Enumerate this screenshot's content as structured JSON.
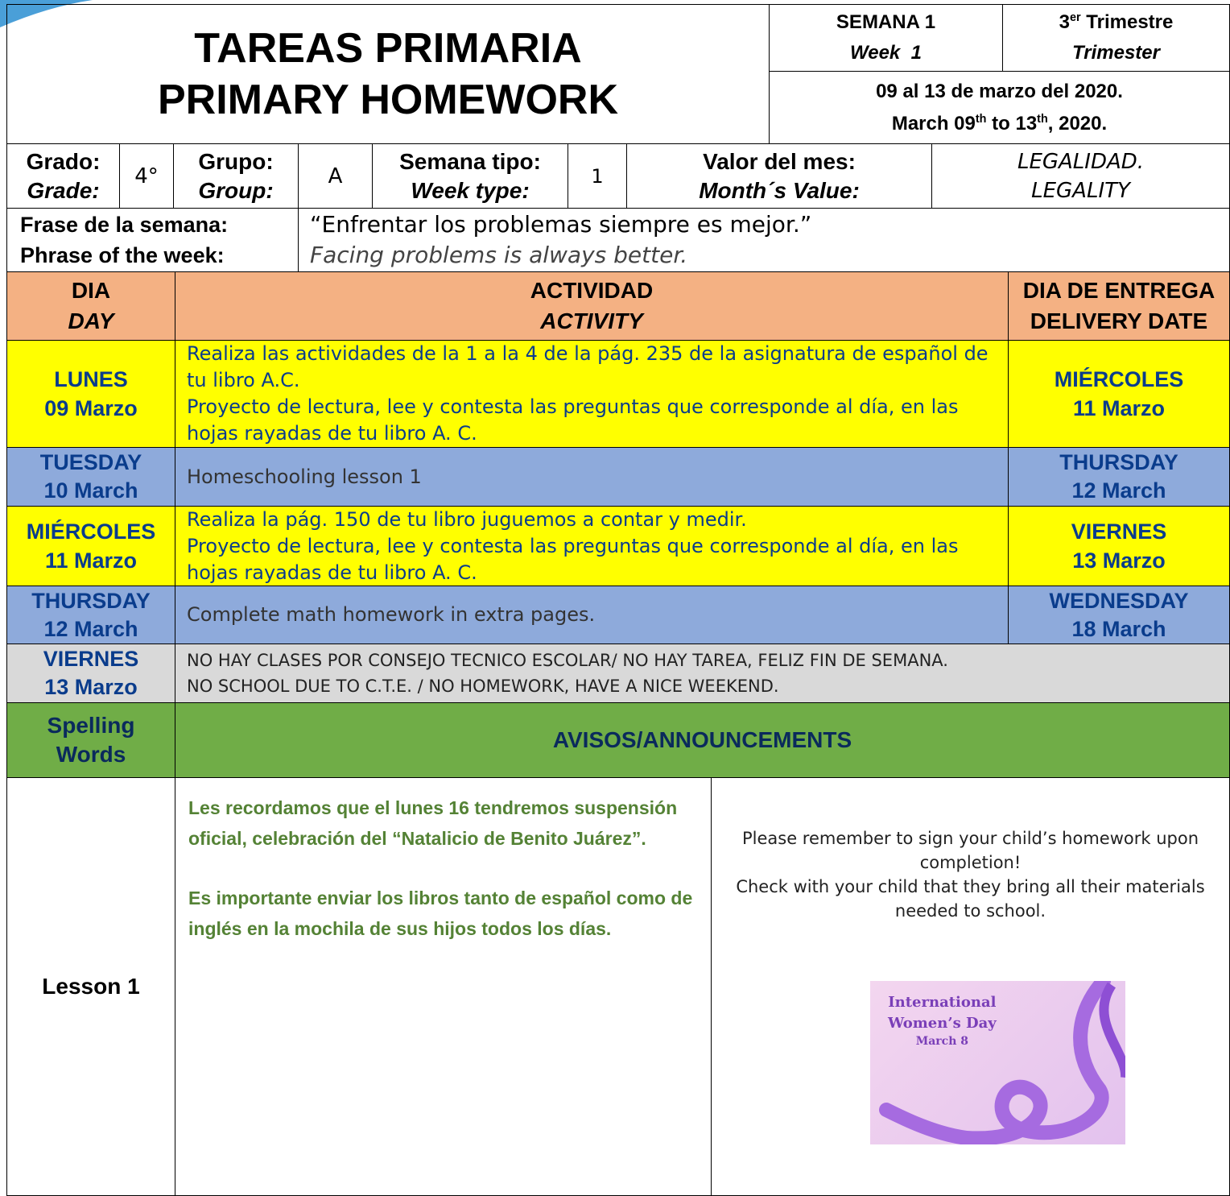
{
  "header": {
    "title_es": "TAREAS PRIMARIA",
    "title_en": "PRIMARY HOMEWORK",
    "week_es": "SEMANA 1",
    "week_en": "Week  1",
    "trimester_num": "3",
    "trimester_sup": "er",
    "trimester_es": "Trimestre",
    "trimester_en": "Trimester",
    "dates_es": "09 al 13 de marzo del 2020.",
    "dates_en": [
      "March 09",
      "th",
      " to 13",
      "th",
      ", 2020."
    ]
  },
  "info": {
    "grade_label_es": "Grado:",
    "grade_label_en": "Grade:",
    "grade": "4°",
    "group_label_es": "Grupo:",
    "group_label_en": "Group:",
    "group": "A",
    "week_type_label_es": "Semana tipo:",
    "week_type_label_en": "Week type:",
    "week_type": "1",
    "value_label_es": "Valor del mes:",
    "value_label_en": "Month´s Value:",
    "value_es": "LEGALIDAD.",
    "value_en": "LEGALITY"
  },
  "phrase": {
    "label_es": "Frase de la semana:",
    "label_en": "Phrase of the week:",
    "text_es": "“Enfrentar los problemas siempre es mejor.”",
    "text_en": "Facing problems is always better."
  },
  "table": {
    "headers": [
      {
        "es": "DIA",
        "en": "DAY"
      },
      {
        "es": "ACTIVIDAD",
        "en": "ACTIVITY"
      },
      {
        "es": "DIA DE ENTREGA",
        "en": "DELIVERY DATE"
      }
    ],
    "rows": [
      {
        "day": [
          "LUNES",
          "09 Marzo"
        ],
        "activity": [
          "Realiza las actividades de la 1 a la 4 de la pág. 235 de la asignatura de español de tu libro A.C.",
          "Proyecto de lectura, lee y contesta las preguntas que corresponde al día, en las hojas rayadas de tu libro A. C."
        ],
        "delivery": [
          "MIÉRCOLES",
          "11 Marzo"
        ]
      },
      {
        "day": [
          "TUESDAY",
          "10 March"
        ],
        "activity": [
          "Homeschooling lesson 1"
        ],
        "delivery": [
          "THURSDAY",
          "12 March"
        ]
      },
      {
        "day": [
          "MIÉRCOLES",
          "11 Marzo"
        ],
        "activity": [
          "Realiza la pág. 150 de tu libro juguemos a contar y medir.",
          "Proyecto de lectura, lee y contesta las preguntas que corresponde al día, en las hojas rayadas de tu libro A. C."
        ],
        "delivery": [
          "VIERNES",
          "13 Marzo"
        ]
      },
      {
        "day": [
          "THURSDAY",
          "12 March"
        ],
        "activity": [
          "Complete math homework in extra pages."
        ],
        "delivery": [
          "WEDNESDAY",
          "18 March"
        ]
      },
      {
        "day": [
          "VIERNES",
          "13 Marzo"
        ],
        "activity": [
          "NO HAY CLASES POR CONSEJO TECNICO ESCOLAR/ NO HAY TAREA, FELIZ FIN DE SEMANA.",
          "NO SCHOOL DUE TO C.T.E. / NO HOMEWORK, HAVE A NICE WEEKEND."
        ]
      }
    ]
  },
  "announcements": {
    "spelling_label": [
      "Spelling",
      "Words"
    ],
    "title": "AVISOS/ANNOUNCEMENTS",
    "lesson": "Lesson 1",
    "notes_es": [
      "Les recordamos que el lunes 16 tendremos suspensión oficial, celebración del “Natalicio de Benito Juárez”.",
      "Es importante enviar los libros tanto de español como de inglés en la mochila de sus hijos todos los días."
    ],
    "notes_en": [
      "Please remember to sign your child’s homework upon completion!",
      "Check with your child that they bring all their materials needed to school."
    ],
    "image_text": [
      "International",
      "Women’s Day",
      "March 8"
    ]
  }
}
